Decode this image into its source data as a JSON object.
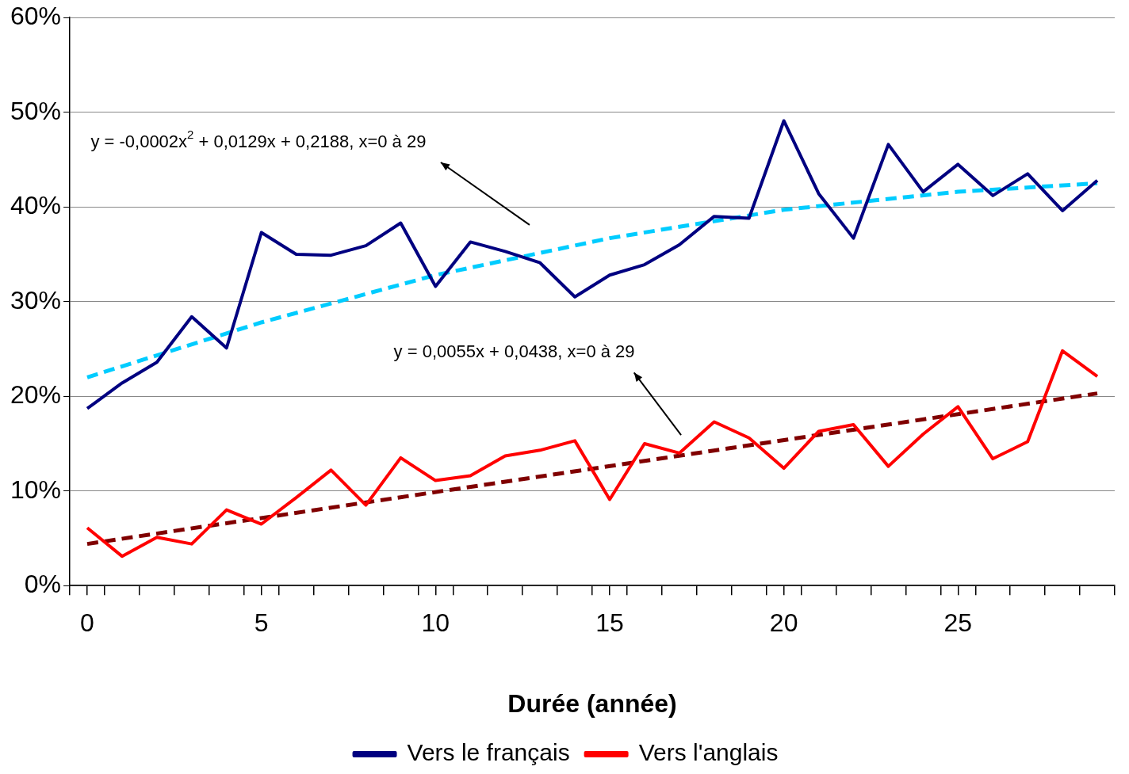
{
  "chart_data": {
    "type": "line",
    "xlabel": "Durée (année)",
    "x": [
      0,
      1,
      2,
      3,
      4,
      5,
      6,
      7,
      8,
      9,
      10,
      11,
      12,
      13,
      14,
      15,
      16,
      17,
      18,
      19,
      20,
      21,
      22,
      23,
      24,
      25,
      26,
      27,
      28,
      29
    ],
    "series": [
      {
        "name": "Vers le français",
        "color": "#000080",
        "values": [
          18.7,
          21.4,
          23.6,
          28.4,
          25.1,
          37.3,
          35.0,
          34.9,
          35.9,
          38.3,
          31.6,
          36.3,
          35.3,
          34.1,
          30.5,
          32.8,
          33.9,
          36.0,
          39.0,
          38.8,
          49.1,
          41.4,
          36.7,
          46.6,
          41.6,
          44.5,
          41.2,
          43.5,
          39.6,
          42.8
        ]
      },
      {
        "name": "Vers l'anglais",
        "color": "#ff0000",
        "values": [
          6.1,
          3.1,
          5.1,
          4.4,
          8.0,
          6.5,
          9.3,
          12.2,
          8.5,
          13.5,
          11.1,
          11.6,
          13.7,
          14.3,
          15.3,
          9.1,
          15.0,
          14.0,
          17.3,
          15.6,
          12.4,
          16.3,
          17.0,
          12.6,
          16.0,
          18.9,
          13.4,
          15.2,
          24.8,
          22.1
        ]
      },
      {
        "type": "line",
        "line_style": "dashed",
        "color": "#00ccff",
        "x": [
          0,
          5,
          10,
          15,
          20,
          25,
          29
        ],
        "values": [
          22.0,
          27.8,
          32.8,
          36.7,
          39.7,
          41.6,
          42.5
        ]
      },
      {
        "type": "line",
        "line_style": "dashed",
        "color": "#800000",
        "x": [
          0,
          29
        ],
        "values": [
          4.4,
          20.3
        ]
      }
    ],
    "xlim": [
      -0.5,
      29.5
    ],
    "xticks": [
      {
        "value": -0.5,
        "label": null
      },
      0,
      {
        "value": 0.5,
        "label": null
      },
      {
        "value": 1.5,
        "label": null
      },
      {
        "value": 2.5,
        "label": null
      },
      {
        "value": 3.5,
        "label": null
      },
      {
        "value": 4.5,
        "label": null
      },
      5,
      {
        "value": 5.5,
        "label": null
      },
      {
        "value": 6.5,
        "label": null
      },
      {
        "value": 7.5,
        "label": null
      },
      {
        "value": 8.5,
        "label": null
      },
      {
        "value": 9.5,
        "label": null
      },
      10,
      {
        "value": 10.5,
        "label": null
      },
      {
        "value": 11.5,
        "label": null
      },
      {
        "value": 12.5,
        "label": null
      },
      {
        "value": 13.5,
        "label": null
      },
      {
        "value": 14.5,
        "label": null
      },
      15,
      {
        "value": 15.5,
        "label": null
      },
      {
        "value": 16.5,
        "label": null
      },
      {
        "value": 17.5,
        "label": null
      },
      {
        "value": 18.5,
        "label": null
      },
      {
        "value": 19.5,
        "label": null
      },
      20,
      {
        "value": 20.5,
        "label": null
      },
      {
        "value": 21.5,
        "label": null
      },
      {
        "value": 22.5,
        "label": null
      },
      {
        "value": 23.5,
        "label": null
      },
      {
        "value": 24.5,
        "label": null
      },
      25,
      {
        "value": 25.5,
        "label": null
      },
      {
        "value": 26.5,
        "label": null
      },
      {
        "value": 27.5,
        "label": null
      },
      {
        "value": 28.5,
        "label": null
      },
      {
        "value": 29.5,
        "label": null
      }
    ],
    "ylim": [
      0,
      60
    ],
    "yticks": [
      {
        "value": 0,
        "label": "0%"
      },
      {
        "value": 10,
        "label": "10%"
      },
      {
        "value": 20,
        "label": "20%"
      },
      {
        "value": 30,
        "label": "30%"
      },
      {
        "value": 40,
        "label": "40%"
      },
      {
        "value": 50,
        "label": "50%"
      },
      {
        "value": 60,
        "label": "60%"
      }
    ],
    "grid": "y",
    "legend": "bottom",
    "marker": "none",
    "line_style": "solid",
    "annotations": [
      "y = -0,0002x$^{2}$ + 0,0129x + 0,2188, x=0 à 29",
      "y = 0,0055x + 0,0438, x=0 à 29"
    ]
  }
}
